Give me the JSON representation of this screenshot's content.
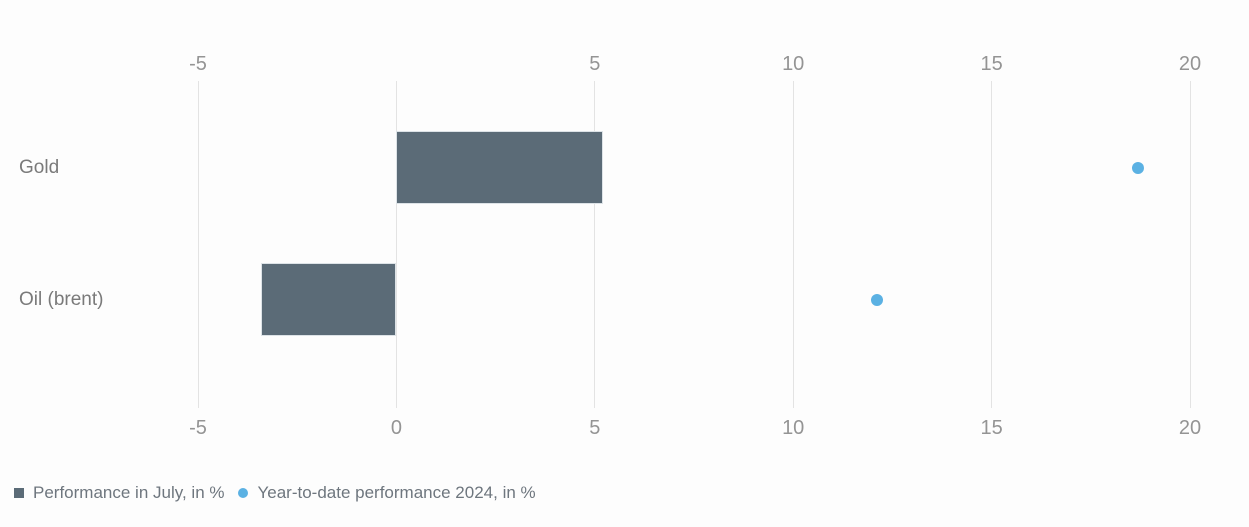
{
  "chart_data": {
    "type": "bar",
    "orientation": "horizontal",
    "title": "",
    "categories": [
      "Gold",
      "Oil (brent)"
    ],
    "series": [
      {
        "name": "Performance in July, in %",
        "marker": "square",
        "color": "#5b6b77",
        "values": [
          5.2,
          -3.4
        ]
      },
      {
        "name": "Year-to-date performance 2024, in %",
        "marker": "circle",
        "color": "#5bb1e3",
        "values": [
          18.7,
          12.1
        ]
      }
    ],
    "xlim": [
      -5,
      20
    ],
    "bottom_axis_ticks": [
      -5,
      0,
      5,
      10,
      15,
      20
    ],
    "top_axis_ticks": [
      -5,
      5,
      10,
      15,
      20
    ],
    "grid": true,
    "legend_position": "bottom-left",
    "colors": {
      "gridline": "#e3e3e3",
      "tick_label": "#949494",
      "category_label": "#7a7a7a",
      "legend_text": "#6e767e",
      "background": "#fdfdfd"
    }
  }
}
